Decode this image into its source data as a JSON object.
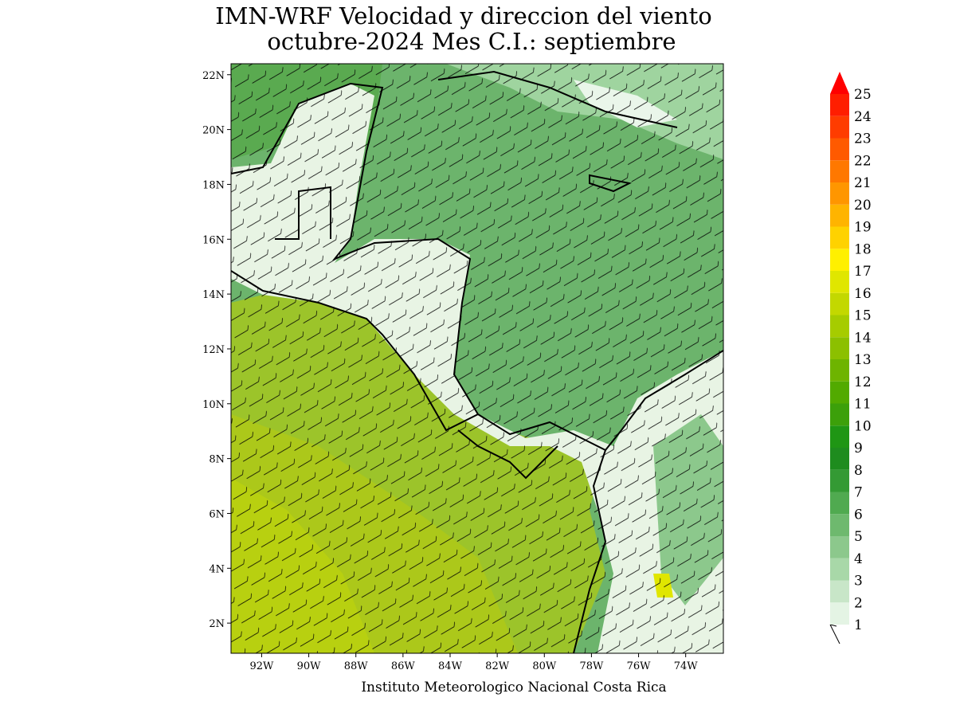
{
  "title": [
    "IMN-WRF Velocidad y direccion del viento",
    "octubre-2024 Mes C.I.: septiembre"
  ],
  "map": {
    "xlim": [
      -93.3,
      -72.4
    ],
    "ylim": [
      0.9,
      22.4
    ],
    "lat_ticks": [
      {
        "value": 2,
        "label": "2N"
      },
      {
        "value": 4,
        "label": "4N"
      },
      {
        "value": 6,
        "label": "6N"
      },
      {
        "value": 8,
        "label": "8N"
      },
      {
        "value": 10,
        "label": "10N"
      },
      {
        "value": 12,
        "label": "12N"
      },
      {
        "value": 14,
        "label": "14N"
      },
      {
        "value": 16,
        "label": "16N"
      },
      {
        "value": 18,
        "label": "18N"
      },
      {
        "value": 20,
        "label": "20N"
      },
      {
        "value": 22,
        "label": "22N"
      }
    ],
    "lon_ticks": [
      {
        "value": -92,
        "label": "92W"
      },
      {
        "value": -90,
        "label": "90W"
      },
      {
        "value": -88,
        "label": "88W"
      },
      {
        "value": -86,
        "label": "86W"
      },
      {
        "value": -84,
        "label": "84W"
      },
      {
        "value": -82,
        "label": "82W"
      },
      {
        "value": -80,
        "label": "80W"
      },
      {
        "value": -78,
        "label": "78W"
      },
      {
        "value": -76,
        "label": "76W"
      },
      {
        "value": -74,
        "label": "74W"
      }
    ]
  },
  "colorbar": {
    "levels": [
      1,
      2,
      3,
      4,
      5,
      6,
      7,
      8,
      9,
      10,
      11,
      12,
      13,
      14,
      15,
      16,
      17,
      18,
      19,
      20,
      21,
      22,
      23,
      24,
      25
    ],
    "colors": [
      "#e4f4e4",
      "#c8e6c8",
      "#a8d8a8",
      "#8cc88c",
      "#6eb96e",
      "#50aa50",
      "#349a34",
      "#1e8c1e",
      "#1f9614",
      "#3ca00a",
      "#52aa00",
      "#6eb400",
      "#8cc000",
      "#a6cc00",
      "#c3d800",
      "#e0e600",
      "#fff000",
      "#ffd200",
      "#ffb400",
      "#ff9600",
      "#ff7800",
      "#ff5a00",
      "#ff3c00",
      "#ff1e00"
    ],
    "over_color": "#ff0000"
  },
  "footer": "Instituto Meteorologico Nacional Costa Rica"
}
